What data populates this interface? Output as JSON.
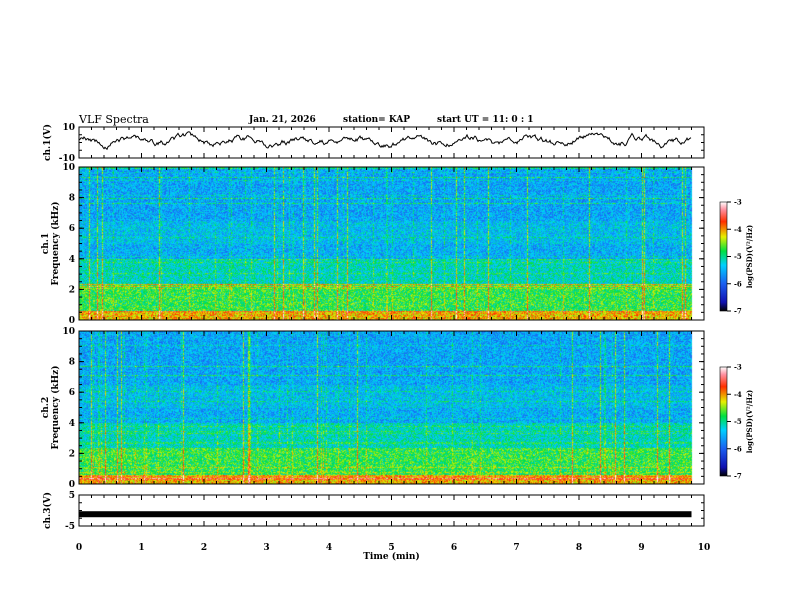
{
  "header": {
    "title": "VLF Spectra",
    "date": "Jan. 21, 2026",
    "station": "station= KAP",
    "start": "start  UT =   11: 0  : 1"
  },
  "colors": {
    "background": "#ffffff",
    "axis": "#000000",
    "trace": "#000000"
  },
  "chart_data": [
    {
      "type": "line",
      "name": "ch.1 waveform",
      "ylabel": "ch.1(V)",
      "xlim": [
        0,
        10
      ],
      "ylim": [
        -10,
        10
      ],
      "ytick_labels": [
        "10",
        "-10"
      ],
      "ytick_values": [
        10,
        -10
      ],
      "series_note": "noisy signal spanning roughly -6 to 8 V over 0 to 9.8 min"
    },
    {
      "type": "heatmap",
      "name": "ch.1 spectrogram",
      "ylabel_top": "ch.1",
      "ylabel": "Frequency (kHz)",
      "xlim": [
        0,
        10
      ],
      "ylim": [
        0,
        10
      ],
      "ytick_labels": [
        "0",
        "2",
        "4",
        "6",
        "8",
        "10"
      ],
      "ytick_values": [
        0,
        2,
        4,
        6,
        8,
        10
      ],
      "data_extent_min": 9.8,
      "colorbar": {
        "label": "log(PSD)(V²/Hz)",
        "range": [
          -7,
          -3
        ],
        "tick_labels": [
          "-3",
          "-4",
          "-5",
          "-6",
          "-7"
        ],
        "tick_values": [
          -3,
          -4,
          -5,
          -6,
          -7
        ]
      }
    },
    {
      "type": "heatmap",
      "name": "ch.2 spectrogram",
      "ylabel_top": "ch.2",
      "ylabel": "Frequency (kHz)",
      "xlim": [
        0,
        10
      ],
      "ylim": [
        0,
        10
      ],
      "ytick_labels": [
        "0",
        "2",
        "4",
        "6",
        "8",
        "10"
      ],
      "ytick_values": [
        0,
        2,
        4,
        6,
        8,
        10
      ],
      "data_extent_min": 9.8,
      "colorbar": {
        "label": "log(PSD)(V²/Hz)",
        "range": [
          -7,
          -3
        ],
        "tick_labels": [
          "-3",
          "-4",
          "-5",
          "-6",
          "-7"
        ],
        "tick_values": [
          -3,
          -4,
          -5,
          -6,
          -7
        ]
      }
    },
    {
      "type": "line",
      "name": "ch.3 waveform",
      "ylabel": "ch.3(V)",
      "xlim": [
        0,
        10
      ],
      "ylim": [
        -5,
        5
      ],
      "ytick_labels": [
        "5",
        "-5"
      ],
      "ytick_values": [
        5,
        -5
      ],
      "level": -1.2,
      "xlabel": "Time (min)",
      "xtick_labels": [
        "0",
        "1",
        "2",
        "3",
        "4",
        "5",
        "6",
        "7",
        "8",
        "9",
        "10"
      ],
      "xtick_values": [
        0,
        1,
        2,
        3,
        4,
        5,
        6,
        7,
        8,
        9,
        10
      ]
    }
  ]
}
